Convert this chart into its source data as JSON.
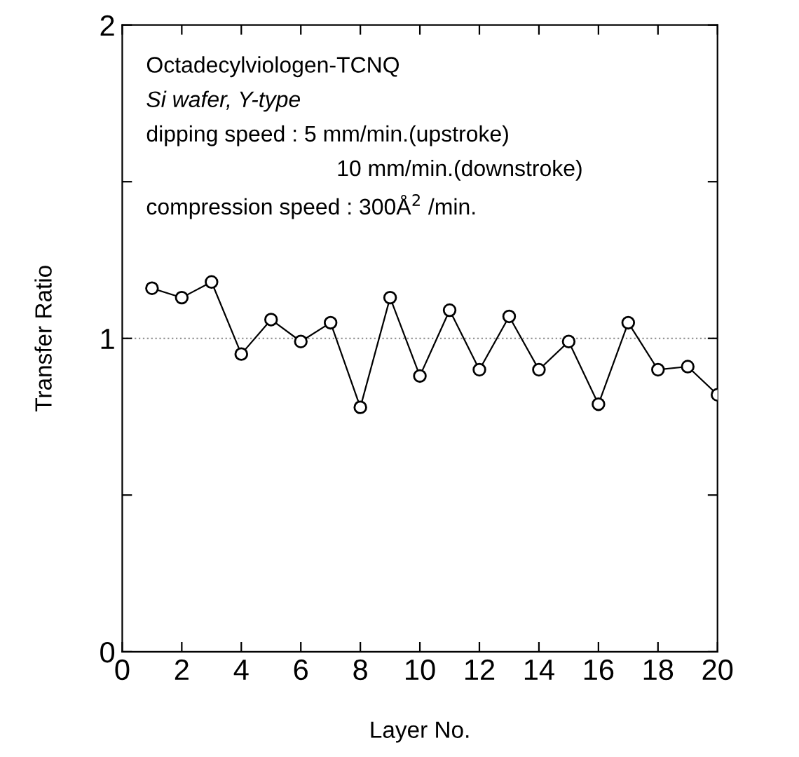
{
  "chart_data": {
    "type": "line",
    "xlabel": "Layer No.",
    "ylabel": "Transfer Ratio",
    "x": [
      1,
      2,
      3,
      4,
      5,
      6,
      7,
      8,
      9,
      10,
      11,
      12,
      13,
      14,
      15,
      16,
      17,
      18,
      19,
      20
    ],
    "series": [
      {
        "color": "#000000",
        "values": [
          1.16,
          1.13,
          1.18,
          0.95,
          1.06,
          0.99,
          1.05,
          0.78,
          1.13,
          0.88,
          1.09,
          0.9,
          1.07,
          0.9,
          0.99,
          0.79,
          1.05,
          0.9,
          0.91,
          0.82
        ]
      }
    ],
    "xlim": [
      0,
      20
    ],
    "xticks": [
      0,
      2,
      4,
      6,
      8,
      10,
      12,
      14,
      16,
      18,
      20
    ],
    "ylim": [
      0,
      2
    ],
    "yticks": [
      0,
      {
        "value": 0.5,
        "label": null
      },
      1,
      {
        "value": 1.5,
        "label": null
      },
      2
    ],
    "ref_lines": [
      {
        "axis": "y",
        "value": 1,
        "color": "#888888",
        "line_style": "dotted"
      }
    ],
    "marker": "circle",
    "line_style": "solid",
    "grid": false,
    "legend": false,
    "annotations": [
      "Octadecylviologen-TCNQ",
      "Si wafer, Y-type",
      "dipping speed : 5 mm/min.(upstroke)",
      "10 mm/min.(downstroke)",
      "compression speed : 300Å$^{2}$ /min."
    ]
  }
}
